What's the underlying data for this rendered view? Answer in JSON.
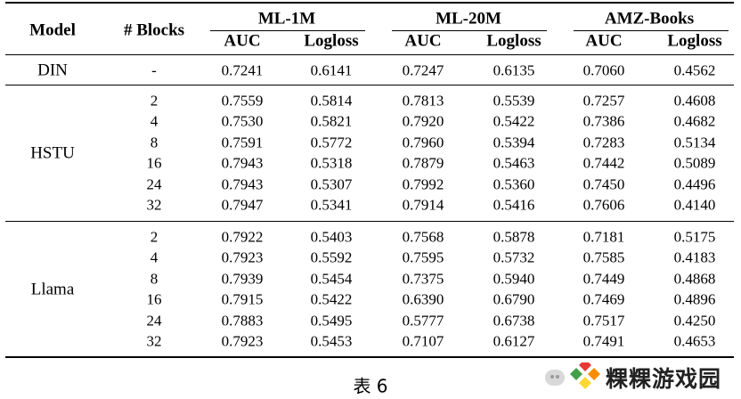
{
  "table": {
    "header": {
      "model": "Model",
      "blocks": "# Blocks",
      "groups": [
        "ML-1M",
        "ML-20M",
        "AMZ-Books"
      ],
      "subheaders": [
        "AUC",
        "Logloss",
        "AUC",
        "Logloss",
        "AUC",
        "Logloss"
      ]
    },
    "baseline": {
      "model": "DIN",
      "blocks": "-",
      "values": [
        "0.7241",
        "0.6141",
        "0.7247",
        "0.6135",
        "0.7060",
        "0.4562"
      ]
    },
    "sections": [
      {
        "model": "HSTU",
        "rows": [
          {
            "blocks": "2",
            "values": [
              "0.7559",
              "0.5814",
              "0.7813",
              "0.5539",
              "0.7257",
              "0.4608"
            ]
          },
          {
            "blocks": "4",
            "values": [
              "0.7530",
              "0.5821",
              "0.7920",
              "0.5422",
              "0.7386",
              "0.4682"
            ]
          },
          {
            "blocks": "8",
            "values": [
              "0.7591",
              "0.5772",
              "0.7960",
              "0.5394",
              "0.7283",
              "0.5134"
            ]
          },
          {
            "blocks": "16",
            "values": [
              "0.7943",
              "0.5318",
              "0.7879",
              "0.5463",
              "0.7442",
              "0.5089"
            ]
          },
          {
            "blocks": "24",
            "values": [
              "0.7943",
              "0.5307",
              "0.7992",
              "0.5360",
              "0.7450",
              "0.4496"
            ]
          },
          {
            "blocks": "32",
            "values": [
              "0.7947",
              "0.5341",
              "0.7914",
              "0.5416",
              "0.7606",
              "0.4140"
            ]
          }
        ]
      },
      {
        "model": "Llama",
        "rows": [
          {
            "blocks": "2",
            "values": [
              "0.7922",
              "0.5403",
              "0.7568",
              "0.5878",
              "0.7181",
              "0.5175"
            ]
          },
          {
            "blocks": "4",
            "values": [
              "0.7923",
              "0.5592",
              "0.7595",
              "0.5732",
              "0.7585",
              "0.4183"
            ]
          },
          {
            "blocks": "8",
            "values": [
              "0.7939",
              "0.5454",
              "0.7375",
              "0.5940",
              "0.7449",
              "0.4868"
            ]
          },
          {
            "blocks": "16",
            "values": [
              "0.7915",
              "0.5422",
              "0.6390",
              "0.6790",
              "0.7469",
              "0.4896"
            ]
          },
          {
            "blocks": "24",
            "values": [
              "0.7883",
              "0.5495",
              "0.5777",
              "0.6738",
              "0.7517",
              "0.4250"
            ]
          },
          {
            "blocks": "32",
            "values": [
              "0.7923",
              "0.5453",
              "0.7107",
              "0.6127",
              "0.7491",
              "0.4653"
            ]
          }
        ]
      }
    ]
  },
  "caption": "表 6",
  "watermark": {
    "text": "粿粿游戏园",
    "logo_colors": [
      "#e53935",
      "#fb8c00",
      "#fdd835",
      "#43a047"
    ]
  }
}
